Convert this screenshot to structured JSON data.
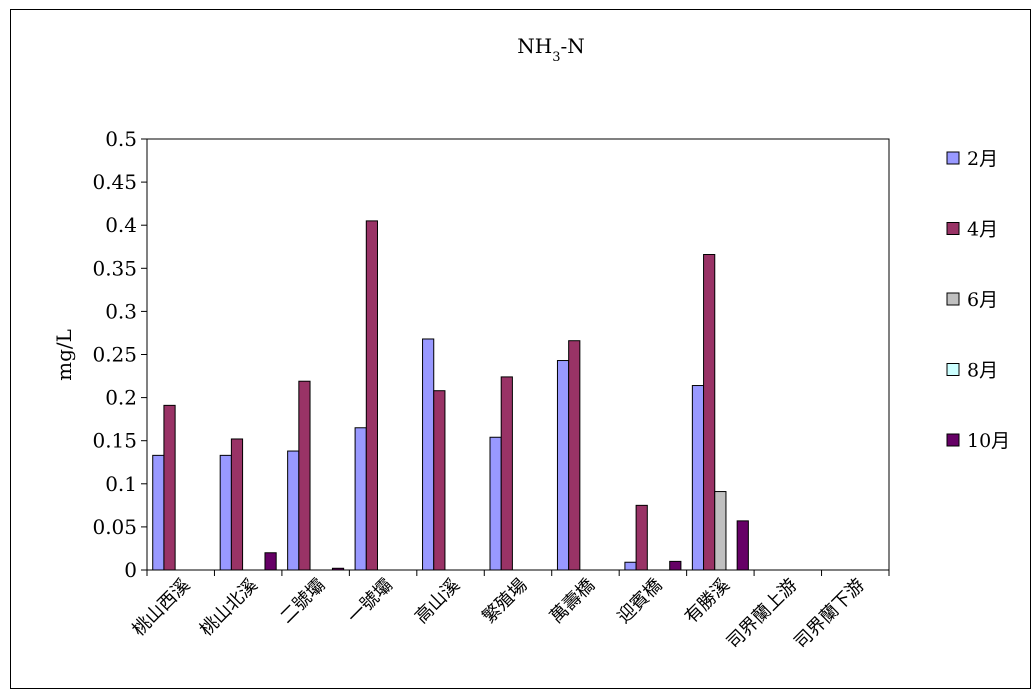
{
  "chart_data": {
    "type": "bar",
    "title": "NH3-N",
    "ylabel": "mg/L",
    "xlabel": "",
    "ylim": [
      0,
      0.5
    ],
    "yticks": [
      "0",
      "0.05",
      "0.1",
      "0.15",
      "0.2",
      "0.25",
      "0.3",
      "0.35",
      "0.4",
      "0.45",
      "0.5"
    ],
    "grid": false,
    "legend_position": "right",
    "categories": [
      "桃山西溪",
      "桃山北溪",
      "二號壩",
      "一號壩",
      "高山溪",
      "繁殖場",
      "萬壽橋",
      "迎賓橋",
      "有勝溪",
      "司界蘭上游",
      "司界蘭下游"
    ],
    "series": [
      {
        "name": "2月",
        "color": "#9999ff",
        "values": [
          0.133,
          0.133,
          0.138,
          0.165,
          0.268,
          0.154,
          0.243,
          0.009,
          0.214,
          0,
          0
        ]
      },
      {
        "name": "4月",
        "color": "#993366",
        "values": [
          0.191,
          0.152,
          0.219,
          0.405,
          0.208,
          0.224,
          0.266,
          0.075,
          0.366,
          0,
          0
        ]
      },
      {
        "name": "6月",
        "color": "#c0c0c0",
        "values": [
          0,
          0,
          0,
          0,
          0,
          0,
          0,
          0,
          0.091,
          0,
          0
        ]
      },
      {
        "name": "8月",
        "color": "#ccffff",
        "values": [
          0,
          0,
          0,
          0,
          0,
          0,
          0,
          0,
          0,
          0,
          0
        ]
      },
      {
        "name": "10月",
        "color": "#660066",
        "values": [
          0,
          0.02,
          0.002,
          0,
          0,
          0,
          0,
          0.01,
          0.057,
          0,
          0
        ]
      }
    ]
  }
}
